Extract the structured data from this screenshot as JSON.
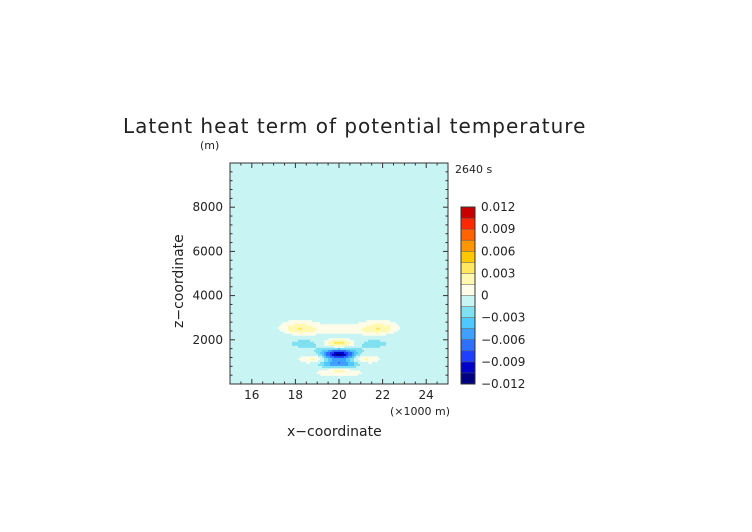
{
  "chart_data": {
    "type": "heatmap",
    "title": "Latent heat term of potential temperature",
    "xlabel": "x−coordinate",
    "ylabel": "z−coordinate",
    "x_unit": "(×1000 m)",
    "y_unit": "(m)",
    "time_label": "2640 s",
    "xlim": [
      15,
      25
    ],
    "ylim": [
      0,
      10000
    ],
    "x_ticks": [
      "16",
      "18",
      "20",
      "22",
      "24"
    ],
    "y_ticks": [
      "2000",
      "4000",
      "6000",
      "8000"
    ],
    "colorbar": {
      "levels": [
        -0.012,
        -0.0105,
        -0.009,
        -0.0075,
        -0.006,
        -0.0045,
        -0.003,
        -0.0015,
        0,
        0.0015,
        0.003,
        0.0045,
        0.006,
        0.0075,
        0.009,
        0.0105,
        0.012
      ],
      "colors": [
        "#000080",
        "#0000c8",
        "#1f3fff",
        "#2f6fff",
        "#3fa0ff",
        "#4fc8ff",
        "#7fe0f0",
        "#c8f4f4",
        "#fcfce8",
        "#fff8b0",
        "#ffe860",
        "#ffc800",
        "#ff9600",
        "#ff6400",
        "#ff2800",
        "#c80000"
      ],
      "tick_labels": [
        "0.012",
        "0.009",
        "0.006",
        "0.003",
        "0",
        "−0.003",
        "−0.006",
        "−0.009",
        "−0.012"
      ],
      "tick_values": [
        0.012,
        0.009,
        0.006,
        0.003,
        0,
        -0.003,
        -0.006,
        -0.009,
        -0.012
      ]
    },
    "features": [
      {
        "x": 18.2,
        "z": 2500,
        "sx": 0.55,
        "sz": 180,
        "value": 0.0035
      },
      {
        "x": 21.8,
        "z": 2500,
        "sx": 0.55,
        "sz": 180,
        "value": 0.0035
      },
      {
        "x": 20.0,
        "z": 2450,
        "sx": 0.7,
        "sz": 150,
        "value": 0.0015
      },
      {
        "x": 18.5,
        "z": 1800,
        "sx": 0.6,
        "sz": 180,
        "value": -0.0015
      },
      {
        "x": 21.5,
        "z": 1800,
        "sx": 0.6,
        "sz": 180,
        "value": -0.0015
      },
      {
        "x": 20.0,
        "z": 1850,
        "sx": 0.45,
        "sz": 120,
        "value": 0.0045
      },
      {
        "x": 20.0,
        "z": 1350,
        "sx": 0.55,
        "sz": 150,
        "value": -0.0105
      },
      {
        "x": 20.0,
        "z": 900,
        "sx": 0.6,
        "sz": 150,
        "value": -0.006
      },
      {
        "x": 20.0,
        "z": 650,
        "sx": 0.45,
        "sz": 110,
        "value": 0.003
      },
      {
        "x": 18.9,
        "z": 1150,
        "sx": 0.35,
        "sz": 130,
        "value": 0.0025
      },
      {
        "x": 21.1,
        "z": 1150,
        "sx": 0.35,
        "sz": 130,
        "value": 0.0025
      },
      {
        "x": 17.0,
        "z": 2100,
        "sx": 0.7,
        "sz": 400,
        "value": -0.0008
      },
      {
        "x": 23.0,
        "z": 2100,
        "sx": 0.7,
        "sz": 400,
        "value": -0.0008
      },
      {
        "x": 20.0,
        "z": 2050,
        "sx": 2.8,
        "sz": 700,
        "value": -0.0006
      }
    ]
  }
}
